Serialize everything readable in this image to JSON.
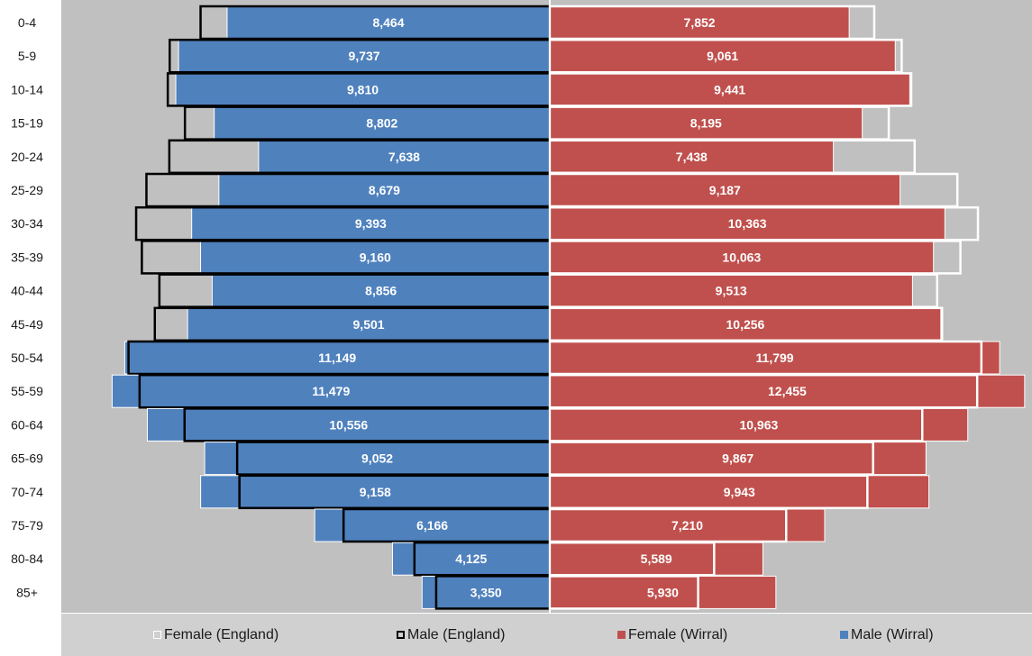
{
  "chart_data": {
    "type": "bar",
    "subtype": "population-pyramid",
    "categories": [
      "0-4",
      "5-9",
      "10-14",
      "15-19",
      "20-24",
      "25-29",
      "30-34",
      "35-39",
      "40-44",
      "45-49",
      "50-54",
      "55-59",
      "60-64",
      "65-69",
      "70-74",
      "75-79",
      "80-84",
      "85+"
    ],
    "series": [
      {
        "name": "Male (Wirral)",
        "side": "left",
        "color": "#4f81bd",
        "values": [
          8464,
          9737,
          9810,
          8802,
          7638,
          8679,
          9393,
          9160,
          8856,
          9501,
          11149,
          11479,
          10556,
          9052,
          9158,
          6166,
          4125,
          3350
        ]
      },
      {
        "name": "Female (Wirral)",
        "side": "right",
        "color": "#c0504d",
        "values": [
          7852,
          9061,
          9441,
          8195,
          7438,
          9187,
          10363,
          10063,
          9513,
          10256,
          11799,
          12455,
          10963,
          9867,
          9943,
          7210,
          5589,
          5930
        ]
      },
      {
        "name": "Male (England)",
        "side": "left",
        "style": "outline",
        "color": "#000000",
        "values": [
          9160,
          9970,
          10020,
          9570,
          9980,
          10580,
          10850,
          10700,
          10240,
          10360,
          11050,
          10760,
          9580,
          8200,
          8140,
          5410,
          3550,
          2980
        ]
      },
      {
        "name": "Female (England)",
        "side": "right",
        "style": "outline",
        "color": "#ffffff",
        "values": [
          8510,
          9230,
          9480,
          8890,
          9570,
          10690,
          11230,
          10770,
          10160,
          10290,
          11320,
          11210,
          9770,
          8480,
          8330,
          6200,
          4310,
          3890
        ]
      }
    ],
    "data_labels": [
      "8,464",
      "9,737",
      "9,810",
      "8,802",
      "7,638",
      "8,679",
      "9,393",
      "9,160",
      "8,856",
      "9,501",
      "11,149",
      "11,479",
      "10,556",
      "9,052",
      "9,158",
      "6,166",
      "4,125",
      "3,350",
      "7,852",
      "9,061",
      "9,441",
      "8,195",
      "7,438",
      "9,187",
      "10,363",
      "10,063",
      "9,513",
      "10,256",
      "11,799",
      "12,455",
      "10,963",
      "9,867",
      "9,943",
      "7,210",
      "5,589",
      "5,930"
    ],
    "xlabel": "",
    "ylabel": "",
    "legend_position": "bottom",
    "background": "#c0c0c0"
  },
  "legend": {
    "female_england": "Female (England)",
    "male_england": "Male (England)",
    "female_wirral": "Female (Wirral)",
    "male_wirral": "Male (Wirral)"
  },
  "colors": {
    "male": "#4f81bd",
    "female": "#c0504d",
    "plot_bg": "#c0c0c0",
    "legend_bg": "#d0d0d0"
  }
}
